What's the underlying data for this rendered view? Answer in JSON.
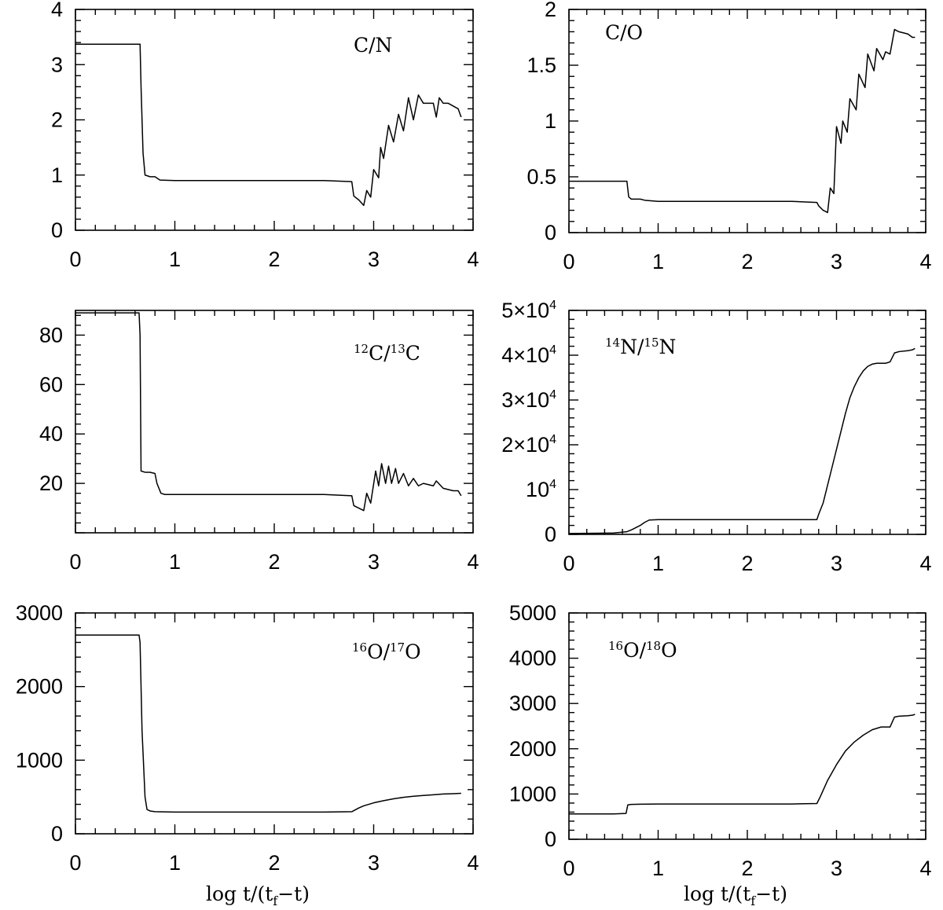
{
  "chart_data": [
    {
      "type": "line",
      "label": "C/N",
      "xlim": [
        0,
        4
      ],
      "ylim": [
        0,
        4
      ],
      "xticks": [
        "0",
        "1",
        "2",
        "3",
        "4"
      ],
      "yticks": [
        "0",
        "1",
        "2",
        "3",
        "4"
      ],
      "series": [
        {
          "x": [
            0,
            0.65,
            0.66,
            0.68,
            0.7,
            0.75,
            0.8,
            0.85,
            1.0,
            1.5,
            2.0,
            2.5,
            2.78,
            2.8,
            2.85,
            2.9,
            2.93,
            2.97,
            3.0,
            3.05,
            3.07,
            3.1,
            3.15,
            3.2,
            3.25,
            3.3,
            3.35,
            3.4,
            3.45,
            3.5,
            3.6,
            3.63,
            3.66,
            3.7,
            3.75,
            3.8,
            3.85,
            3.88
          ],
          "y": [
            3.37,
            3.37,
            2.6,
            1.4,
            1.0,
            0.97,
            0.97,
            0.91,
            0.9,
            0.9,
            0.9,
            0.9,
            0.88,
            0.62,
            0.55,
            0.45,
            0.72,
            0.6,
            1.1,
            0.95,
            1.5,
            1.3,
            1.9,
            1.6,
            2.1,
            1.8,
            2.4,
            2.0,
            2.45,
            2.3,
            2.3,
            2.05,
            2.4,
            2.3,
            2.3,
            2.25,
            2.2,
            2.05
          ]
        }
      ]
    },
    {
      "type": "line",
      "label": "C/O",
      "xlim": [
        0,
        4
      ],
      "ylim": [
        0,
        2
      ],
      "xticks": [
        "0",
        "1",
        "2",
        "3",
        "4"
      ],
      "yticks": [
        "0",
        "0.5",
        "1",
        "1.5",
        "2"
      ],
      "series": [
        {
          "x": [
            0,
            0.65,
            0.67,
            0.7,
            0.75,
            0.8,
            0.85,
            1.0,
            1.5,
            2.0,
            2.5,
            2.78,
            2.8,
            2.85,
            2.9,
            2.93,
            2.97,
            3.0,
            3.05,
            3.07,
            3.12,
            3.15,
            3.22,
            3.25,
            3.32,
            3.35,
            3.42,
            3.45,
            3.52,
            3.55,
            3.6,
            3.65,
            3.7,
            3.8,
            3.85,
            3.88
          ],
          "y": [
            0.46,
            0.46,
            0.32,
            0.3,
            0.3,
            0.3,
            0.29,
            0.28,
            0.28,
            0.28,
            0.28,
            0.27,
            0.24,
            0.2,
            0.18,
            0.4,
            0.35,
            0.95,
            0.8,
            1.0,
            0.9,
            1.2,
            1.1,
            1.42,
            1.3,
            1.6,
            1.45,
            1.65,
            1.55,
            1.62,
            1.6,
            1.82,
            1.8,
            1.78,
            1.75,
            1.75
          ]
        }
      ]
    },
    {
      "type": "line",
      "label": "12C/13C",
      "xlim": [
        0,
        4
      ],
      "ylim": [
        0,
        90
      ],
      "xticks": [
        "0",
        "1",
        "2",
        "3",
        "4"
      ],
      "yticks": [
        "20",
        "40",
        "60",
        "80"
      ],
      "series": [
        {
          "x": [
            0,
            0.64,
            0.65,
            0.66,
            0.7,
            0.75,
            0.8,
            0.82,
            0.86,
            0.9,
            1.0,
            1.5,
            2.0,
            2.5,
            2.78,
            2.8,
            2.85,
            2.9,
            2.93,
            2.97,
            3.02,
            3.05,
            3.08,
            3.12,
            3.15,
            3.18,
            3.22,
            3.25,
            3.3,
            3.35,
            3.4,
            3.45,
            3.5,
            3.6,
            3.63,
            3.7,
            3.8,
            3.85,
            3.88
          ],
          "y": [
            89,
            89,
            80,
            25,
            24.5,
            24.5,
            24,
            20,
            16,
            15.5,
            15.5,
            15.5,
            15.5,
            15.5,
            15,
            11,
            10,
            9,
            16,
            12,
            25,
            19,
            28,
            20,
            27,
            20,
            26,
            20,
            24,
            19,
            22,
            19,
            20,
            19,
            21,
            18,
            17,
            17,
            15
          ]
        }
      ]
    },
    {
      "type": "line",
      "label": "14N/15N",
      "xlim": [
        0,
        4
      ],
      "ylim": [
        0,
        50000
      ],
      "xticks": [
        "0",
        "1",
        "2",
        "3",
        "4"
      ],
      "yticks": [
        "0",
        "10⁴",
        "2×10⁴",
        "3×10⁴",
        "4×10⁴",
        "5×10⁴"
      ],
      "series": [
        {
          "x": [
            0,
            0.5,
            0.65,
            0.7,
            0.75,
            0.8,
            0.85,
            0.9,
            1.0,
            1.5,
            2.0,
            2.5,
            2.78,
            2.8,
            2.85,
            2.9,
            2.95,
            3.0,
            3.05,
            3.1,
            3.15,
            3.2,
            3.25,
            3.3,
            3.35,
            3.4,
            3.45,
            3.5,
            3.55,
            3.6,
            3.65,
            3.7,
            3.8,
            3.85,
            3.88
          ],
          "y": [
            200,
            300,
            600,
            1000,
            1500,
            2000,
            2700,
            3200,
            3300,
            3300,
            3300,
            3300,
            3300,
            4500,
            7000,
            11000,
            15000,
            19000,
            23000,
            27000,
            30500,
            33000,
            35000,
            36500,
            37500,
            38000,
            38200,
            38200,
            38200,
            38500,
            40500,
            40800,
            41000,
            41200,
            41500
          ]
        }
      ]
    },
    {
      "type": "line",
      "label": "16O/17O",
      "xlim": [
        0,
        4
      ],
      "ylim": [
        0,
        3000
      ],
      "xticks": [
        "0",
        "1",
        "2",
        "3",
        "4"
      ],
      "yticks": [
        "0",
        "1000",
        "2000",
        "3000"
      ],
      "series": [
        {
          "x": [
            0,
            0.64,
            0.65,
            0.67,
            0.7,
            0.72,
            0.75,
            0.8,
            1.0,
            1.5,
            2.0,
            2.5,
            2.78,
            2.85,
            2.9,
            3.0,
            3.1,
            3.2,
            3.3,
            3.4,
            3.5,
            3.6,
            3.7,
            3.8,
            3.88
          ],
          "y": [
            2700,
            2700,
            2600,
            1400,
            500,
            330,
            310,
            300,
            295,
            295,
            295,
            295,
            300,
            350,
            380,
            420,
            450,
            475,
            495,
            510,
            520,
            530,
            540,
            545,
            550
          ]
        }
      ]
    },
    {
      "type": "line",
      "label": "16O/18O",
      "xlim": [
        0,
        4
      ],
      "ylim": [
        0,
        5000
      ],
      "xticks": [
        "0",
        "1",
        "2",
        "3",
        "4"
      ],
      "yticks": [
        "0",
        "1000",
        "2000",
        "3000",
        "4000",
        "5000"
      ],
      "series": [
        {
          "x": [
            0,
            0.5,
            0.64,
            0.66,
            0.7,
            0.8,
            1.0,
            1.5,
            2.0,
            2.5,
            2.78,
            2.82,
            2.9,
            3.0,
            3.1,
            3.2,
            3.3,
            3.4,
            3.5,
            3.55,
            3.6,
            3.65,
            3.7,
            3.8,
            3.85,
            3.88
          ],
          "y": [
            560,
            560,
            570,
            760,
            770,
            775,
            780,
            780,
            780,
            780,
            790,
            950,
            1300,
            1650,
            1950,
            2150,
            2300,
            2420,
            2480,
            2480,
            2480,
            2700,
            2720,
            2730,
            2740,
            2760
          ]
        }
      ]
    }
  ],
  "xaxis_title": {
    "prefix": "log t/(t",
    "sub": "f",
    "suffix": "−t)"
  },
  "labels": {
    "cn": "C/N",
    "co": "C/O",
    "c12": {
      "a": "12",
      "b": "C/",
      "c": "13",
      "d": "C"
    },
    "n14": {
      "a": "14",
      "b": "N/",
      "c": "15",
      "d": "N"
    },
    "o17": {
      "a": "16",
      "b": "O/",
      "c": "17",
      "d": "O"
    },
    "o18": {
      "a": "16",
      "b": "O/",
      "c": "18",
      "d": "O"
    }
  }
}
